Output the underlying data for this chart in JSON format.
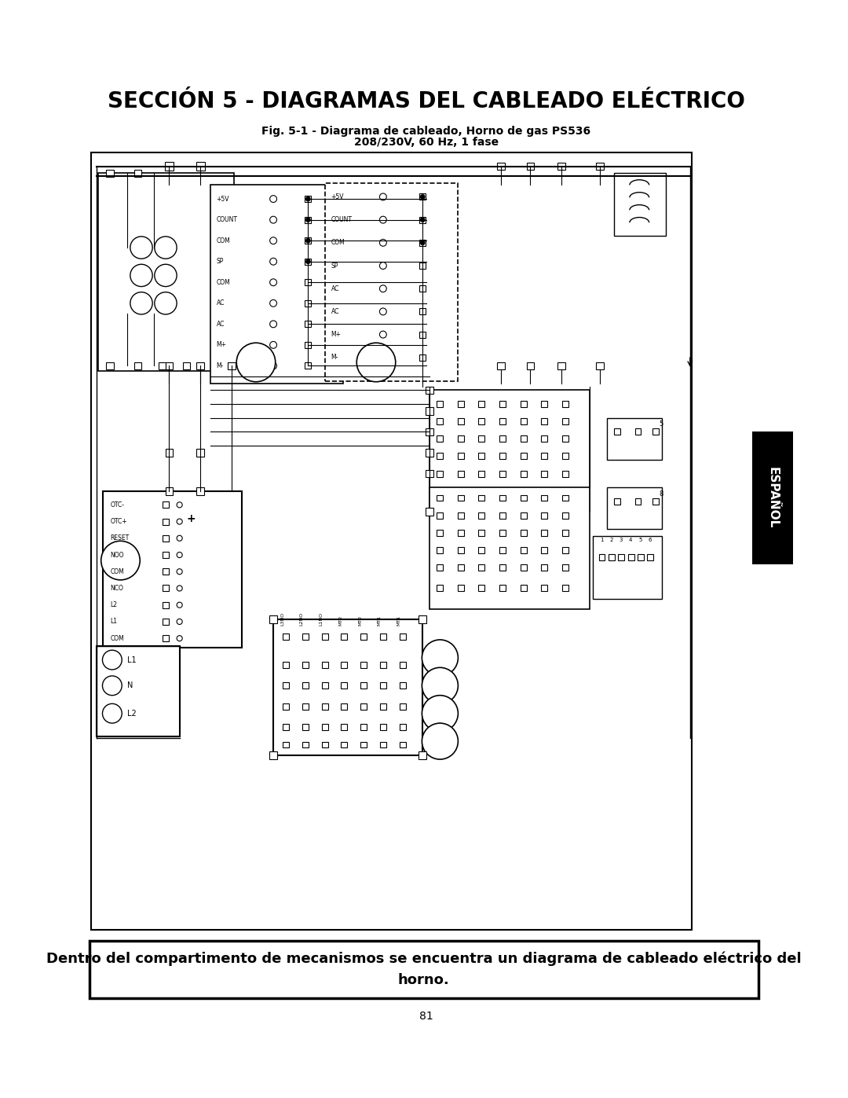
{
  "title": "SECCIÓN 5 - DIAGRAMAS DEL CABLEADO ELÉCTRICO",
  "subtitle_line1": "Fig. 5-1 - Diagrama de cableado, Horno de gas PS536",
  "subtitle_line2": "208/230V, 60 Hz, 1 fase",
  "footer_line1": "Dentro del compartimento de mecanismos se encuentra un diagrama de cableado eléctrico del",
  "footer_line2": "horno.",
  "page_number": "81",
  "espanol_label": "ESPAÑOL",
  "bg_color": "#ffffff",
  "text_color": "#000000",
  "title_fontsize": 20,
  "subtitle_fontsize": 10,
  "footer_fontsize": 13,
  "page_num_fontsize": 10
}
